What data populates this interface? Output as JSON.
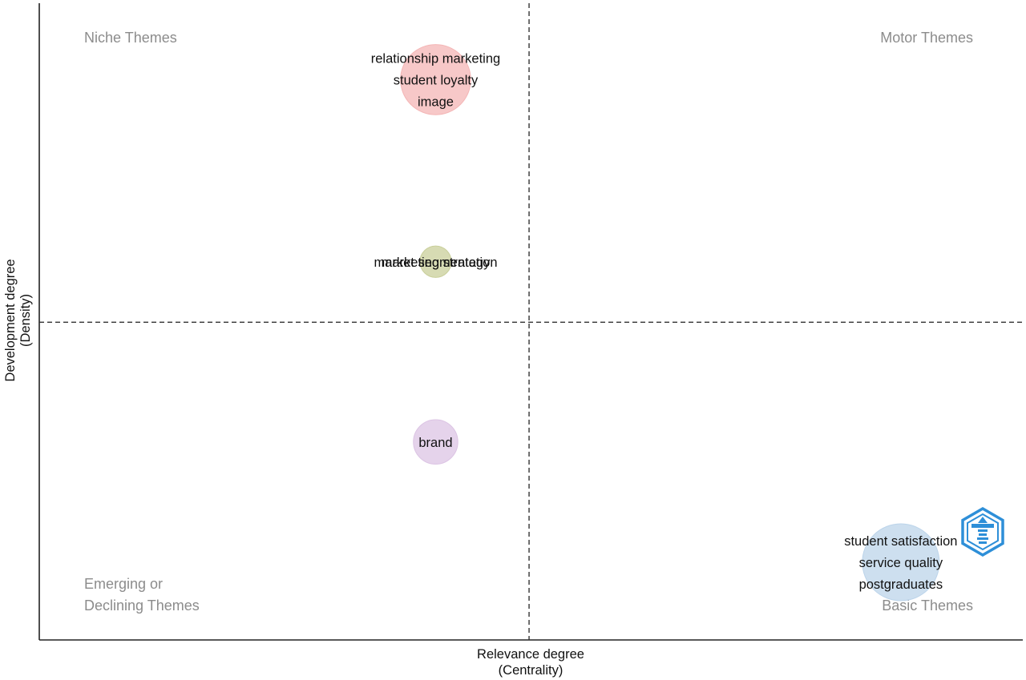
{
  "chart_data": {
    "type": "scatter",
    "title": "",
    "xlabel": [
      "Relevance degree",
      "(Centrality)"
    ],
    "ylabel": [
      "Development degree",
      "(Density)"
    ],
    "grid": false,
    "quadrant_labels": {
      "top_left": [
        "Niche Themes"
      ],
      "top_right": [
        "Motor Themes"
      ],
      "bottom_left": [
        "Emerging or",
        "Declining Themes"
      ],
      "bottom_right": [
        "Basic Themes"
      ]
    },
    "clusters": [
      {
        "labels": [
          "relationship marketing",
          "student loyalty",
          "image"
        ],
        "x": 0.403,
        "y": 0.88,
        "size": 5,
        "color": "#f4b6b6"
      },
      {
        "labels": [
          "market segmentation",
          "marketing strategy"
        ],
        "x": 0.403,
        "y": 0.594,
        "size": 1,
        "color": "#c9cf9a"
      },
      {
        "labels": [
          "brand"
        ],
        "x": 0.403,
        "y": 0.311,
        "size": 2,
        "color": "#dcc4e4"
      },
      {
        "labels": [
          "student satisfaction",
          "service quality",
          "postgraduates"
        ],
        "x": 0.876,
        "y": 0.122,
        "size": 6,
        "color": "#bcd4ea"
      }
    ],
    "xlim": [
      0,
      1
    ],
    "ylim": [
      0,
      1
    ],
    "x_ref": 0.498,
    "y_ref": 0.499,
    "logo": "shield-logo-icon",
    "logo_color": "#2e8fd8"
  }
}
